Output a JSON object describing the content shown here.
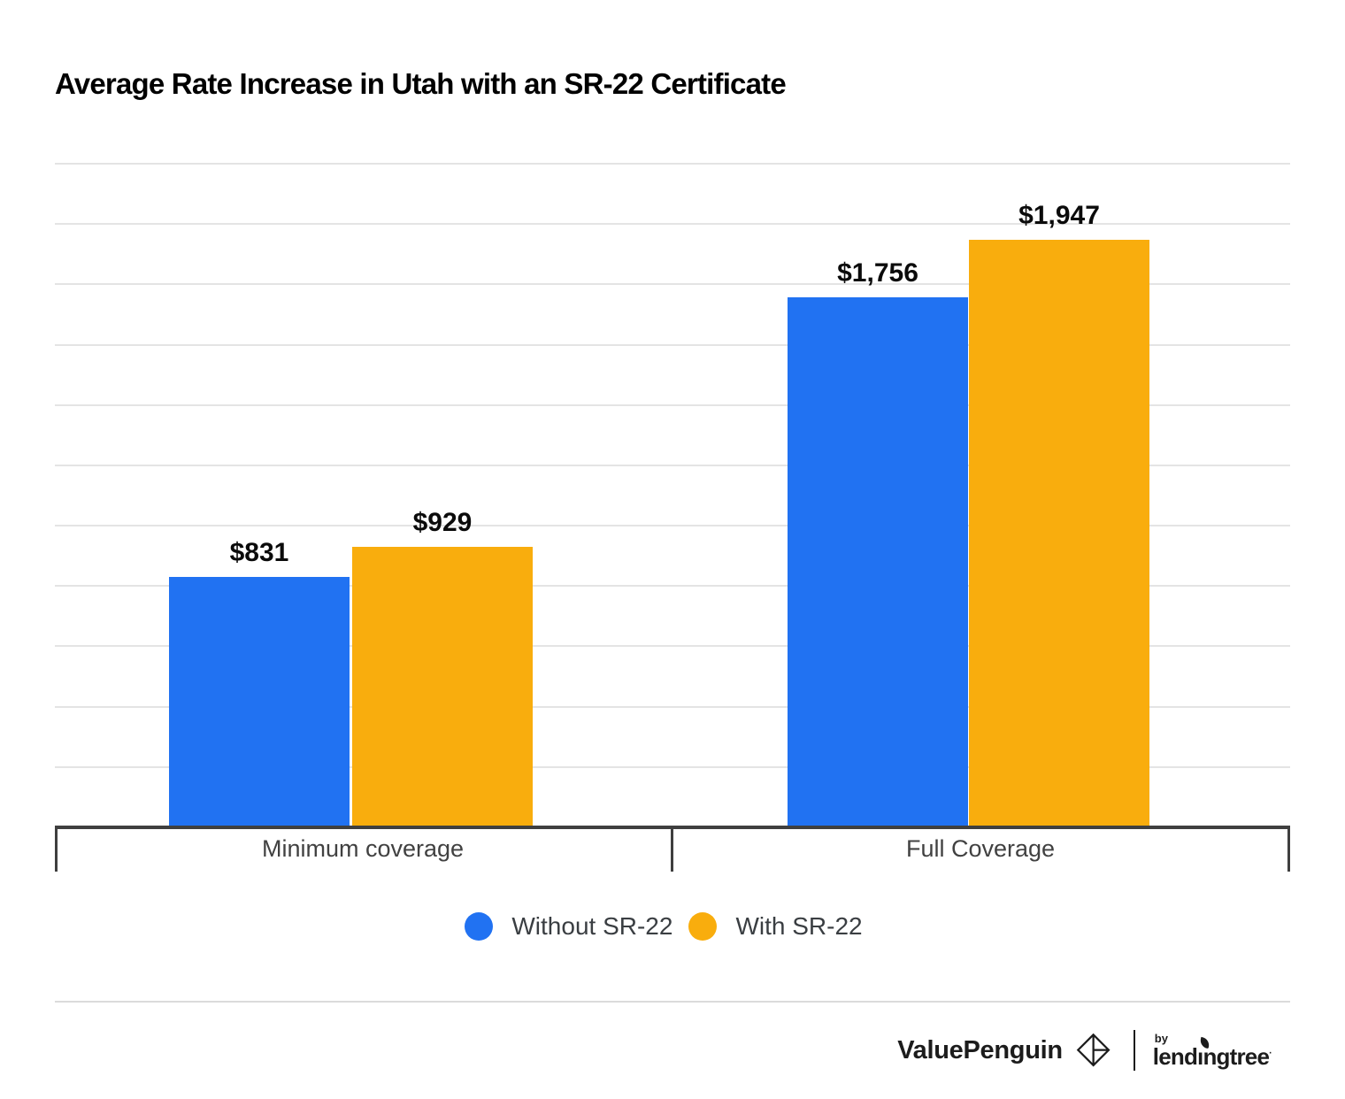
{
  "title": "Average Rate Increase in Utah with an SR-22 Certificate",
  "colors": {
    "without_sr22": "#2172f2",
    "with_sr22": "#f9ad0d",
    "axis": "#3f3f3f",
    "gridline": "#e4e4e4",
    "legend_text": "#3a3e42"
  },
  "chart_data": {
    "type": "bar",
    "title": "Average Rate Increase in Utah with an SR-22 Certificate",
    "categories": [
      "Minimum coverage",
      "Full Coverage"
    ],
    "series": [
      {
        "name": "Without SR-22",
        "color": "#2172f2",
        "values": [
          831,
          1756
        ],
        "labels": [
          "$831",
          "$1,756"
        ]
      },
      {
        "name": "With SR-22",
        "color": "#f9ad0d",
        "values": [
          929,
          1947
        ],
        "labels": [
          "$929",
          "$1,947"
        ]
      }
    ],
    "xlabel": "",
    "ylabel": "",
    "ylim": [
      0,
      2200
    ],
    "grid_step": 200,
    "grid": "on",
    "y_axis_labels_shown": false,
    "legend_position": "bottom"
  },
  "legend": {
    "items": [
      {
        "label": "Without SR-22",
        "color": "#2172f2"
      },
      {
        "label": "With SR-22",
        "color": "#f9ad0d"
      }
    ]
  },
  "footer": {
    "brand": "ValuePenguin",
    "by_label": "by",
    "partner": "lendıngtree",
    "trademark": "·"
  }
}
